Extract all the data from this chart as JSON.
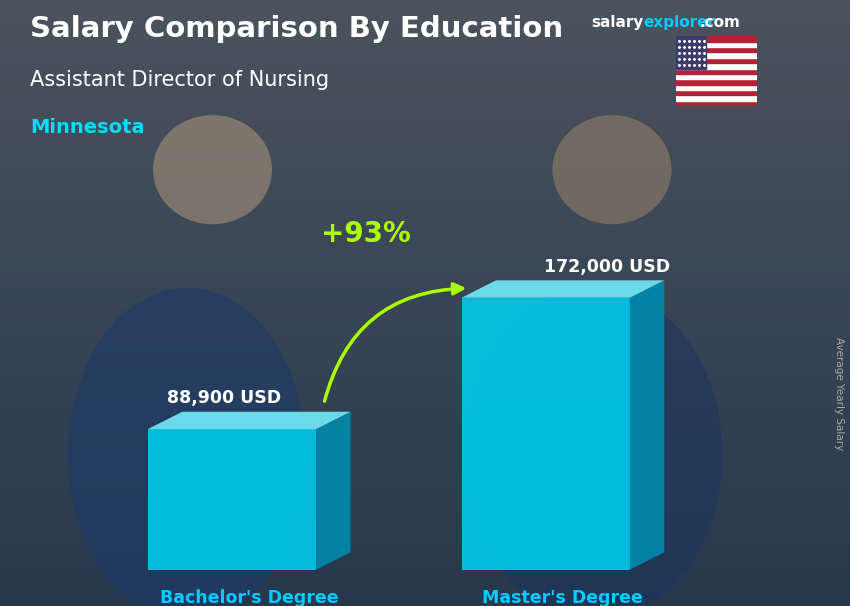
{
  "title_main": "Salary Comparison By Education",
  "title_sub": "Assistant Director of Nursing",
  "title_location": "Minnesota",
  "ylabel": "Average Yearly Salary",
  "categories": [
    "Bachelor's Degree",
    "Master's Degree"
  ],
  "values": [
    88900,
    172000
  ],
  "value_labels": [
    "88,900 USD",
    "172,000 USD"
  ],
  "pct_change": "+93%",
  "bar_face_color": "#00C8E8",
  "bar_top_color": "#70E8F8",
  "bar_side_color": "#0088AA",
  "title_color": "#FFFFFF",
  "subtitle_color": "#FFFFFF",
  "location_color": "#00DDFF",
  "label_color": "#FFFFFF",
  "pct_color": "#AAFF00",
  "arrow_color": "#AAFF00",
  "xlabel_color": "#00CCFF",
  "watermark_salary_color": "#AAAAAA",
  "watermark_explorer_color": "#00CCFF",
  "bg_top_color": "#5a6a7a",
  "bg_bottom_color": "#3a4a5a",
  "figsize": [
    8.5,
    6.06
  ],
  "dpi": 100
}
